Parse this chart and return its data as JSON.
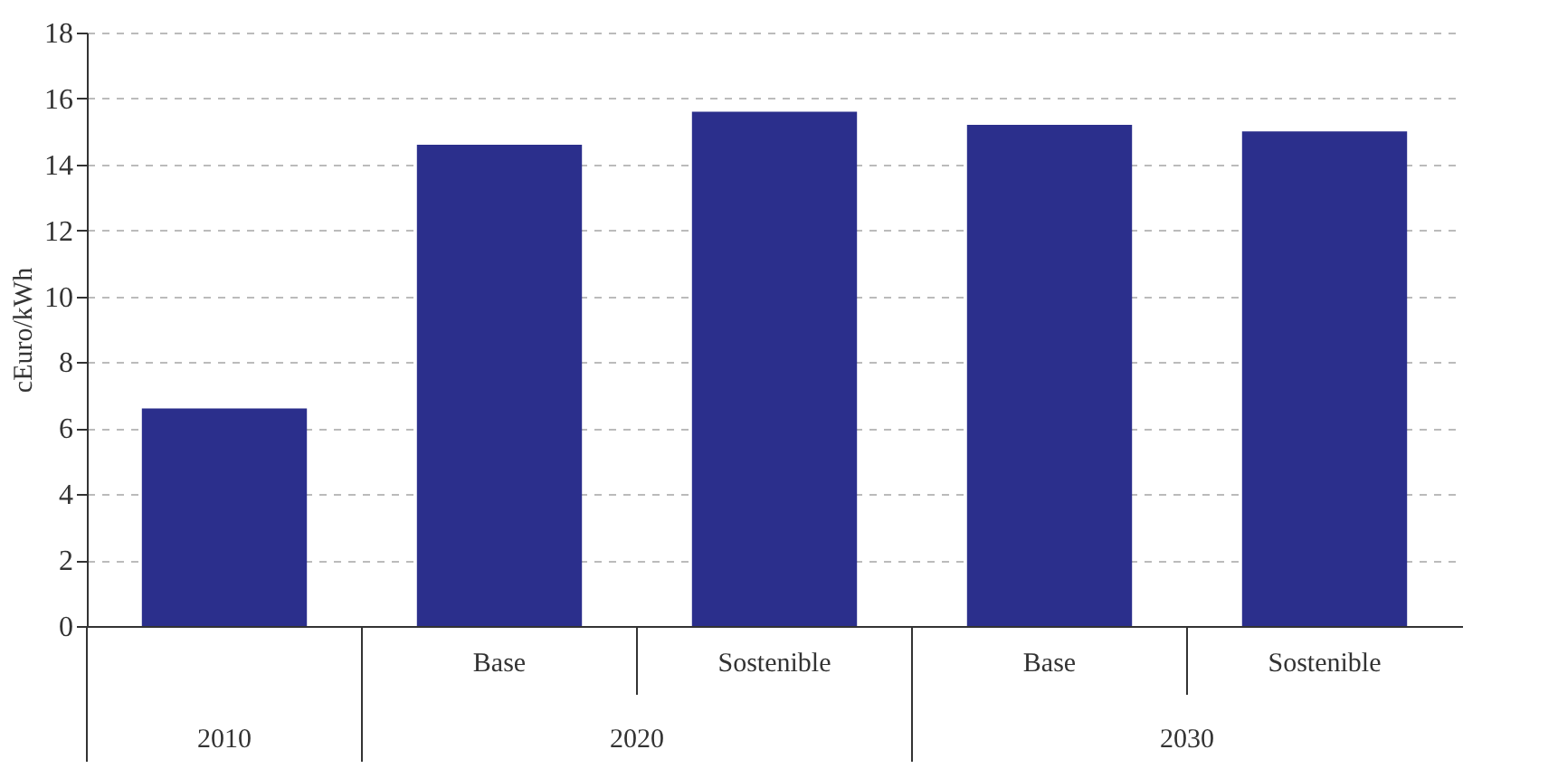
{
  "chart_data": {
    "type": "bar",
    "ylabel": "cEuro/kWh",
    "categories": [
      null,
      "Base",
      "Sostenible",
      "Base",
      "Sostenible"
    ],
    "annotations": [
      "2010",
      "2020",
      "2030"
    ],
    "values": [
      6.6,
      14.6,
      15.6,
      15.2,
      15.0
    ],
    "color": "#2b2f8c",
    "ylim": [
      0,
      18
    ],
    "yticks": [
      0,
      2,
      4,
      6,
      8,
      10,
      12,
      14,
      16,
      18
    ],
    "grid": "y"
  }
}
